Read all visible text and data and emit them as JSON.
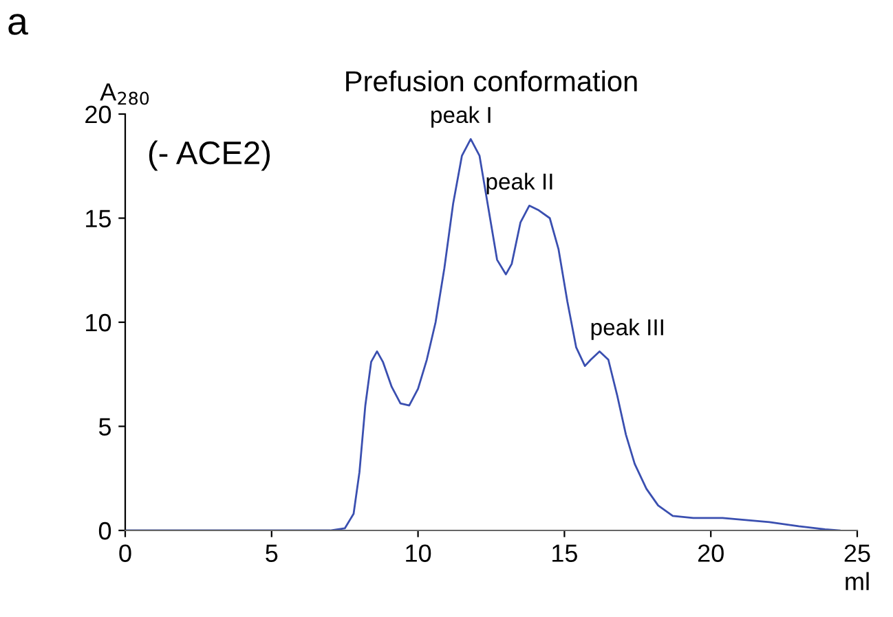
{
  "chart_data": {
    "type": "line",
    "title": "Prefusion conformation",
    "xlabel": "ml",
    "ylabel": "A$_{280}$",
    "annotations": [
      "a",
      "(- ACE2)",
      {
        "text": "peak I",
        "x": 11.8,
        "y": 18.8
      },
      {
        "text": "peak II",
        "x": 13.8,
        "y": 15.6
      },
      {
        "text": "peak III",
        "x": 16.2,
        "y": 8.6
      }
    ],
    "series": [
      {
        "color": "#3a4fb0",
        "x": [
          0,
          7.0,
          7.5,
          7.8,
          8.0,
          8.2,
          8.4,
          8.6,
          8.8,
          9.1,
          9.4,
          9.7,
          10.0,
          10.3,
          10.6,
          10.9,
          11.2,
          11.5,
          11.8,
          12.1,
          12.4,
          12.7,
          13.0,
          13.2,
          13.5,
          13.8,
          14.1,
          14.5,
          14.8,
          15.1,
          15.4,
          15.7,
          15.9,
          16.2,
          16.5,
          16.8,
          17.1,
          17.4,
          17.8,
          18.2,
          18.7,
          19.4,
          20.4,
          21.2,
          22.0,
          23.0,
          23.9,
          24.4
        ],
        "values": [
          0,
          0,
          0.1,
          0.8,
          2.8,
          6.0,
          8.1,
          8.6,
          8.1,
          6.9,
          6.1,
          6.0,
          6.8,
          8.2,
          10.0,
          12.6,
          15.7,
          18.0,
          18.8,
          18.0,
          15.5,
          13.0,
          12.3,
          12.8,
          14.8,
          15.6,
          15.4,
          15.0,
          13.5,
          11.0,
          8.8,
          7.9,
          8.2,
          8.6,
          8.2,
          6.5,
          4.6,
          3.2,
          2.0,
          1.2,
          0.7,
          0.6,
          0.6,
          0.5,
          0.4,
          0.2,
          0.05,
          0
        ]
      }
    ],
    "xlim": [
      0,
      25
    ],
    "ylim": [
      0,
      20
    ],
    "xticks": [
      0,
      5,
      10,
      15,
      20,
      25
    ],
    "yticks": [
      0,
      5,
      10,
      15,
      20
    ],
    "grid": false,
    "legend": false,
    "marker": "none",
    "line_style": "solid"
  }
}
